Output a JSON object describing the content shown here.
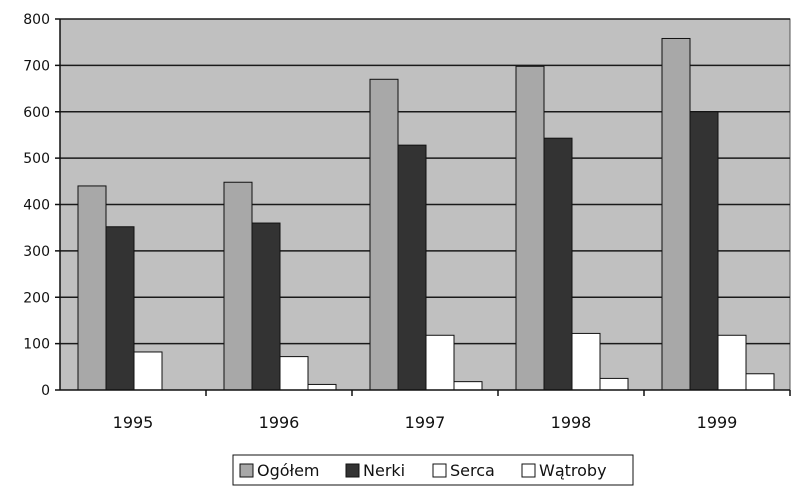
{
  "chart_data": {
    "type": "bar",
    "title": "",
    "xlabel": "",
    "ylabel": "",
    "categories": [
      "1995",
      "1996",
      "1997",
      "1998",
      "1999"
    ],
    "series": [
      {
        "name": "Ogółem",
        "values": [
          440,
          448,
          670,
          698,
          758
        ],
        "color": "#a8a8a8"
      },
      {
        "name": "Nerki",
        "values": [
          352,
          360,
          528,
          543,
          600
        ],
        "color": "#333333"
      },
      {
        "name": "Serca",
        "values": [
          82,
          72,
          118,
          122,
          118
        ],
        "color": "#ffffff"
      },
      {
        "name": "Wątroby",
        "values": [
          0,
          12,
          18,
          25,
          35
        ],
        "color": "#ffffff"
      }
    ],
    "ylim": [
      0,
      800
    ],
    "yticks": [
      "0",
      "100",
      "200",
      "300",
      "400",
      "500",
      "600",
      "700",
      "800"
    ],
    "grid": true,
    "legend_position": "bottom",
    "plot_background": "#c0c0c0"
  }
}
